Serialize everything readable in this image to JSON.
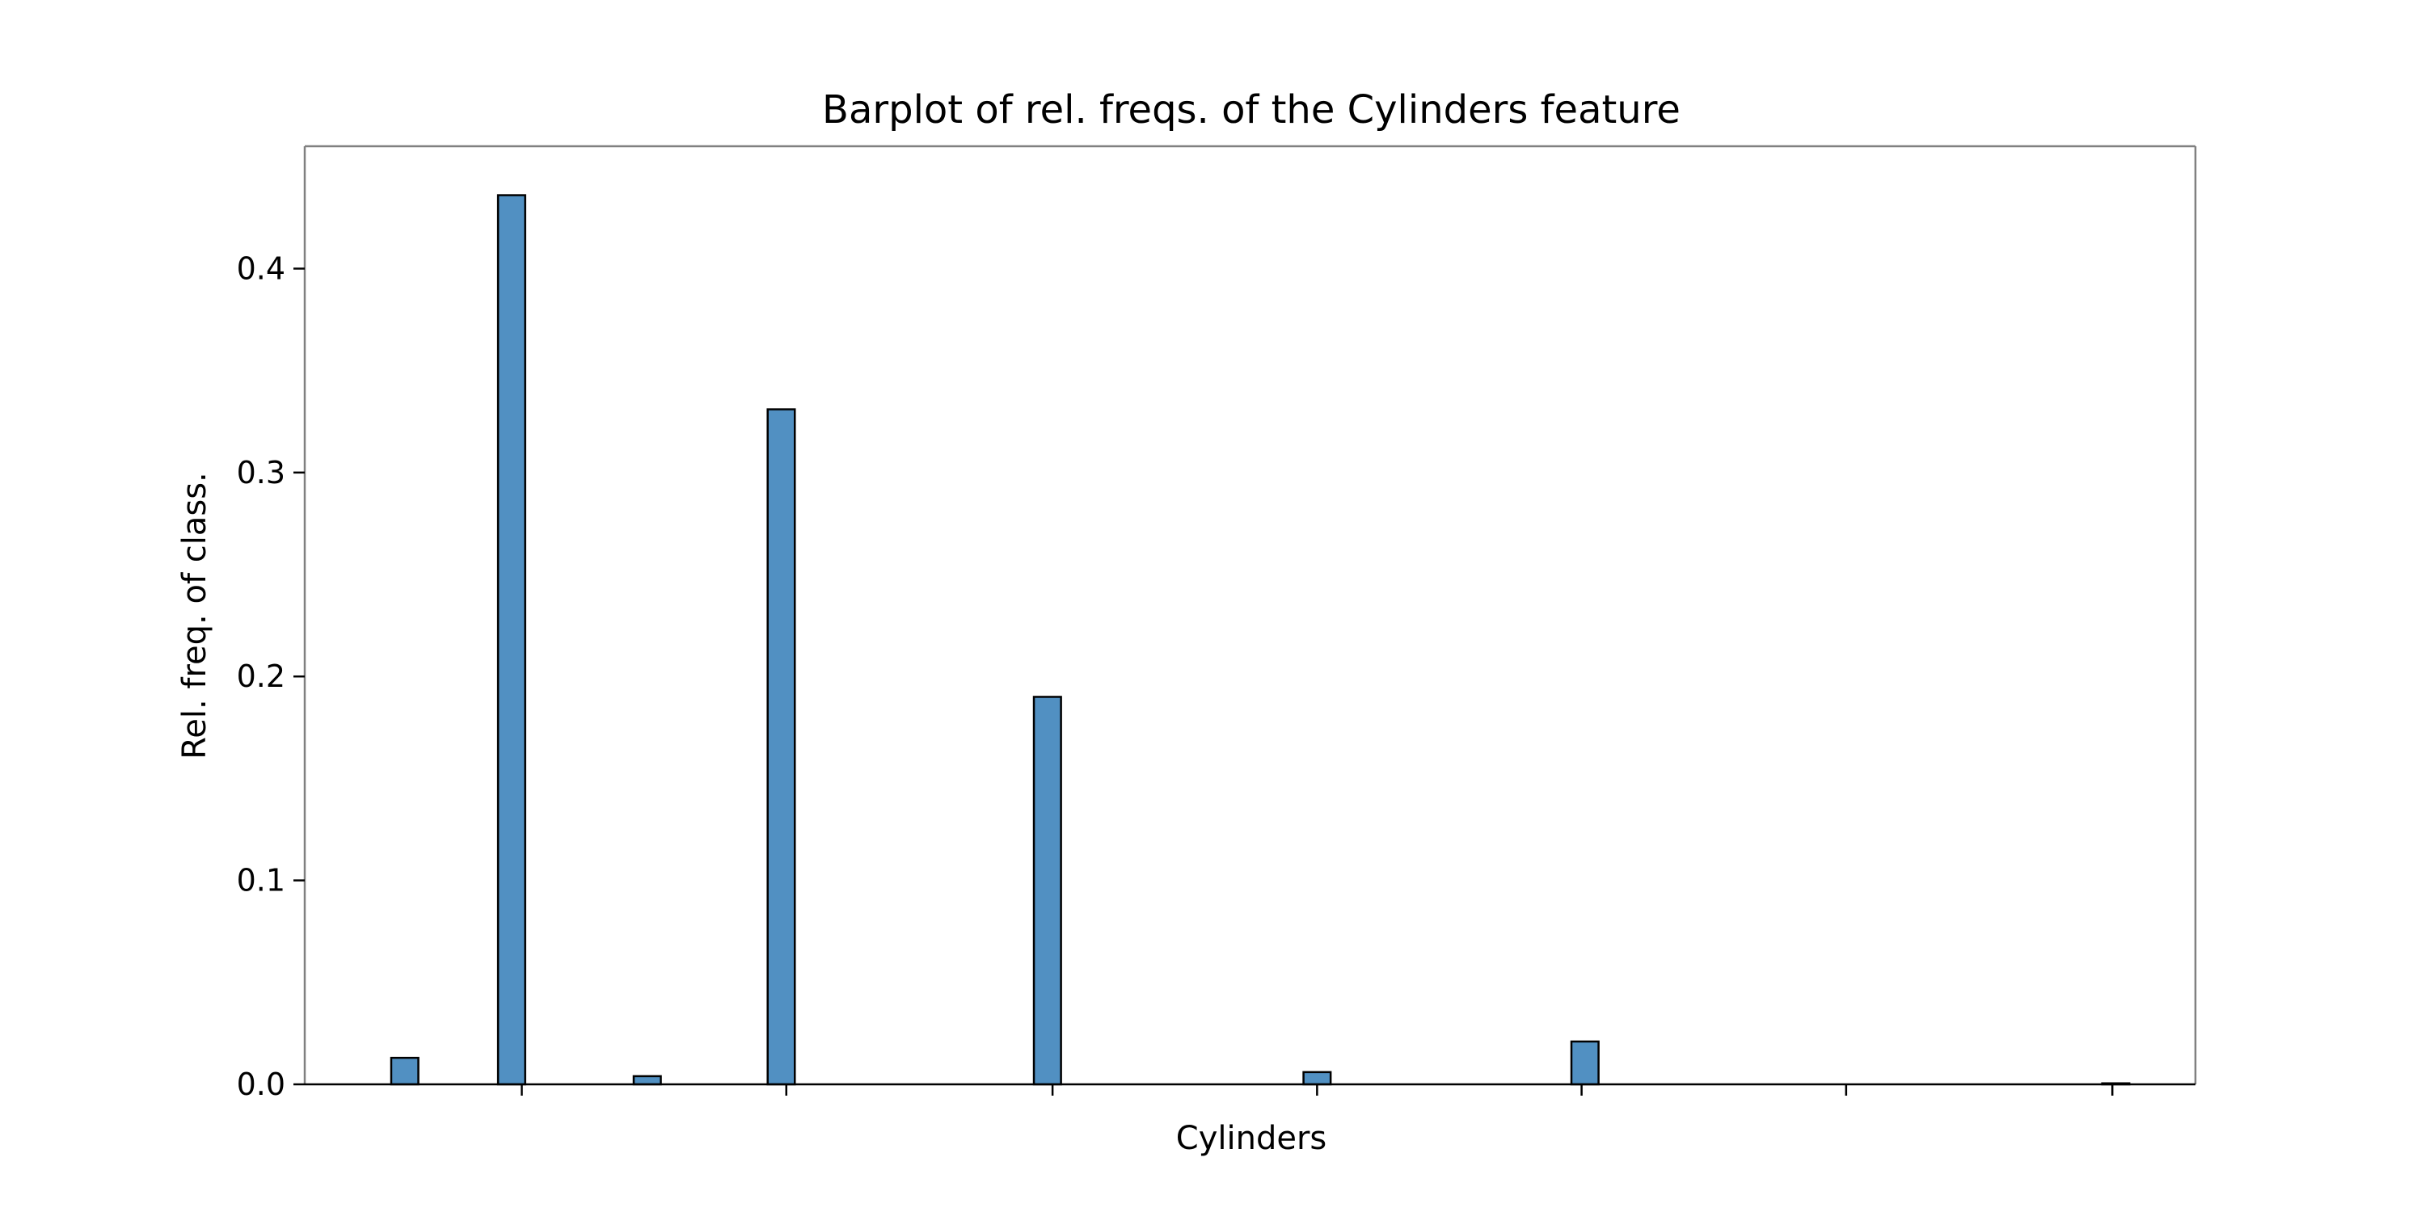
{
  "chart_data": {
    "type": "bar",
    "title": "Barplot of rel. freqs. of the Cylinders feature",
    "xlabel": "Cylinders",
    "ylabel": "Rel. freq. of class.",
    "ylim": [
      0,
      0.46
    ],
    "x_range": [
      0.9,
      12.05
    ],
    "x_ticks": [
      2.18,
      3.74,
      5.31,
      6.87,
      8.43,
      9.99,
      11.56
    ],
    "y_ticks": [
      0.0,
      0.1,
      0.2,
      0.3,
      0.4
    ],
    "y_tick_labels": [
      "0.0",
      "0.1",
      "0.2",
      "0.3",
      "0.4"
    ],
    "bin_width": 0.16,
    "bars": [
      {
        "x": 1.49,
        "value": 0.013
      },
      {
        "x": 2.12,
        "value": 0.436
      },
      {
        "x": 2.92,
        "value": 0.004
      },
      {
        "x": 3.71,
        "value": 0.331
      },
      {
        "x": 5.28,
        "value": 0.19
      },
      {
        "x": 6.87,
        "value": 0.006
      },
      {
        "x": 8.45,
        "value": 0.021
      },
      {
        "x": 11.58,
        "value": 0.0005
      }
    ],
    "grid": false,
    "colors": {
      "bar_fill": "#5190c2",
      "bar_edge": "#000000",
      "frame": "#808080"
    }
  }
}
